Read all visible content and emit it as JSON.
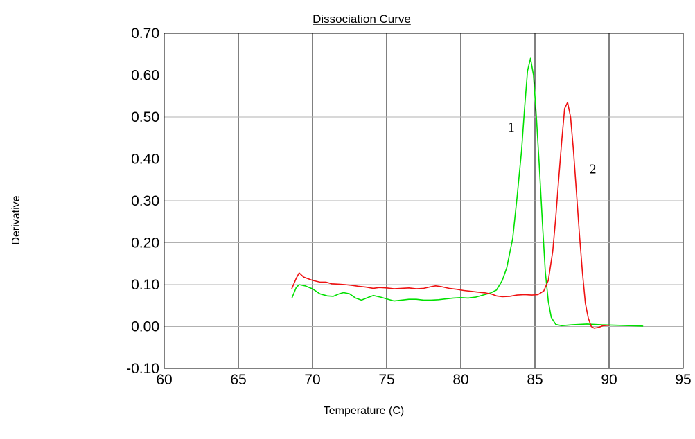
{
  "chart_data": {
    "type": "line",
    "title": "Dissociation Curve",
    "xlabel": "Temperature (C)",
    "ylabel": "Derivative",
    "xlim": [
      60,
      95
    ],
    "ylim": [
      -0.1,
      0.7
    ],
    "x_ticks": [
      "60",
      "65",
      "70",
      "75",
      "80",
      "85",
      "90",
      "95"
    ],
    "y_ticks": [
      "-0.10",
      "0.00",
      "0.10",
      "0.20",
      "0.30",
      "0.40",
      "0.50",
      "0.60",
      "0.70"
    ],
    "grid": {
      "vertical": true,
      "horizontal": true
    },
    "annotations": [
      {
        "text": "1",
        "x": 83.4,
        "y": 0.465
      },
      {
        "text": "2",
        "x": 88.9,
        "y": 0.365
      }
    ],
    "series": [
      {
        "color": "#00e000",
        "points": [
          [
            68.6,
            0.067
          ],
          [
            68.9,
            0.093
          ],
          [
            69.1,
            0.1
          ],
          [
            69.5,
            0.097
          ],
          [
            70.0,
            0.09
          ],
          [
            70.5,
            0.078
          ],
          [
            71.0,
            0.073
          ],
          [
            71.4,
            0.072
          ],
          [
            71.8,
            0.078
          ],
          [
            72.1,
            0.081
          ],
          [
            72.5,
            0.078
          ],
          [
            72.9,
            0.068
          ],
          [
            73.3,
            0.063
          ],
          [
            73.8,
            0.07
          ],
          [
            74.1,
            0.074
          ],
          [
            74.6,
            0.07
          ],
          [
            75.0,
            0.066
          ],
          [
            75.5,
            0.061
          ],
          [
            76.0,
            0.063
          ],
          [
            76.5,
            0.065
          ],
          [
            77.0,
            0.065
          ],
          [
            77.5,
            0.063
          ],
          [
            78.0,
            0.063
          ],
          [
            78.5,
            0.064
          ],
          [
            79.0,
            0.066
          ],
          [
            79.5,
            0.068
          ],
          [
            80.0,
            0.069
          ],
          [
            80.5,
            0.068
          ],
          [
            81.0,
            0.07
          ],
          [
            81.5,
            0.075
          ],
          [
            82.0,
            0.08
          ],
          [
            82.4,
            0.087
          ],
          [
            82.8,
            0.11
          ],
          [
            83.1,
            0.14
          ],
          [
            83.5,
            0.21
          ],
          [
            83.8,
            0.31
          ],
          [
            84.1,
            0.42
          ],
          [
            84.3,
            0.52
          ],
          [
            84.5,
            0.61
          ],
          [
            84.7,
            0.64
          ],
          [
            84.9,
            0.6
          ],
          [
            85.1,
            0.5
          ],
          [
            85.3,
            0.38
          ],
          [
            85.5,
            0.25
          ],
          [
            85.7,
            0.13
          ],
          [
            85.9,
            0.06
          ],
          [
            86.1,
            0.022
          ],
          [
            86.4,
            0.005
          ],
          [
            86.8,
            0.002
          ],
          [
            87.5,
            0.004
          ],
          [
            88.5,
            0.006
          ],
          [
            89.5,
            0.004
          ],
          [
            90.5,
            0.003
          ],
          [
            91.5,
            0.002
          ],
          [
            92.3,
            0.001
          ]
        ]
      },
      {
        "color": "#ee1111",
        "points": [
          [
            68.6,
            0.09
          ],
          [
            68.9,
            0.115
          ],
          [
            69.1,
            0.128
          ],
          [
            69.4,
            0.118
          ],
          [
            70.0,
            0.11
          ],
          [
            70.5,
            0.106
          ],
          [
            70.9,
            0.106
          ],
          [
            71.3,
            0.102
          ],
          [
            71.8,
            0.101
          ],
          [
            72.2,
            0.1
          ],
          [
            72.7,
            0.098
          ],
          [
            73.1,
            0.096
          ],
          [
            73.6,
            0.094
          ],
          [
            74.1,
            0.091
          ],
          [
            74.5,
            0.093
          ],
          [
            75.0,
            0.092
          ],
          [
            75.5,
            0.09
          ],
          [
            76.0,
            0.091
          ],
          [
            76.5,
            0.092
          ],
          [
            77.0,
            0.09
          ],
          [
            77.5,
            0.091
          ],
          [
            78.0,
            0.095
          ],
          [
            78.3,
            0.097
          ],
          [
            78.7,
            0.095
          ],
          [
            79.2,
            0.091
          ],
          [
            79.7,
            0.089
          ],
          [
            80.2,
            0.086
          ],
          [
            80.7,
            0.084
          ],
          [
            81.2,
            0.082
          ],
          [
            81.7,
            0.08
          ],
          [
            82.1,
            0.077
          ],
          [
            82.4,
            0.073
          ],
          [
            82.8,
            0.071
          ],
          [
            83.3,
            0.072
          ],
          [
            83.8,
            0.075
          ],
          [
            84.3,
            0.076
          ],
          [
            84.8,
            0.075
          ],
          [
            85.2,
            0.076
          ],
          [
            85.6,
            0.085
          ],
          [
            85.9,
            0.11
          ],
          [
            86.2,
            0.18
          ],
          [
            86.4,
            0.26
          ],
          [
            86.6,
            0.35
          ],
          [
            86.8,
            0.44
          ],
          [
            87.0,
            0.52
          ],
          [
            87.2,
            0.535
          ],
          [
            87.4,
            0.5
          ],
          [
            87.6,
            0.42
          ],
          [
            87.8,
            0.32
          ],
          [
            88.0,
            0.22
          ],
          [
            88.2,
            0.13
          ],
          [
            88.4,
            0.055
          ],
          [
            88.6,
            0.02
          ],
          [
            88.8,
            0.0
          ],
          [
            89.0,
            -0.004
          ],
          [
            89.3,
            -0.002
          ],
          [
            89.6,
            0.002
          ],
          [
            90.0,
            0.003
          ]
        ]
      }
    ]
  }
}
